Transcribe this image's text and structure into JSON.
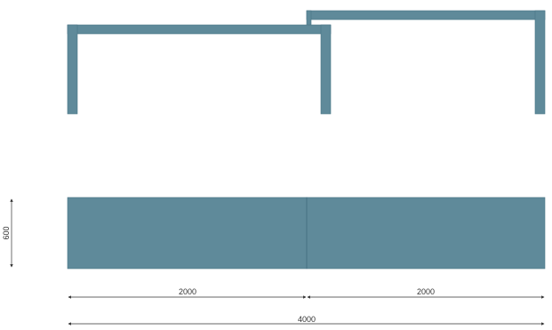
{
  "drawing": {
    "colors": {
      "steel": "#5f8a9a",
      "steel_edge": "#4a7585",
      "dimension_line": "#333333",
      "background": "#ffffff"
    },
    "dimensions": {
      "width_left": "2000",
      "width_right": "2000",
      "total_width": "4000",
      "height": "600"
    }
  }
}
